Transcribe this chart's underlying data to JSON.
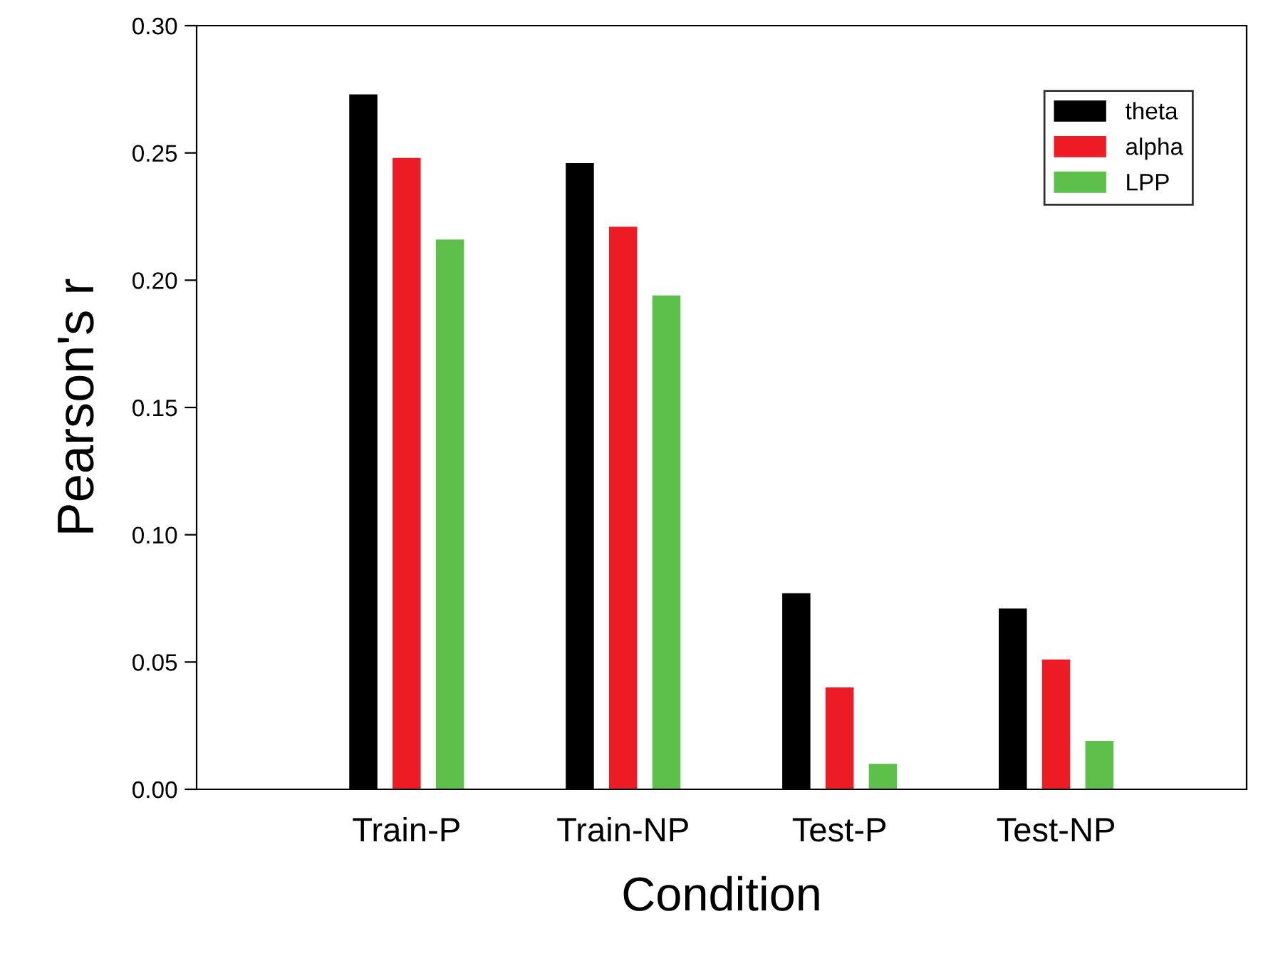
{
  "chart_data": {
    "type": "bar",
    "xlabel": "Condition",
    "ylabel": "Pearson's r",
    "categories": [
      "Train-P",
      "Train-NP",
      "Test-P",
      "Test-NP"
    ],
    "series": [
      {
        "name": "theta",
        "color": "#000000",
        "values": [
          0.273,
          0.246,
          0.077,
          0.071
        ]
      },
      {
        "name": "alpha",
        "color": "#ed1c24",
        "values": [
          0.248,
          0.221,
          0.04,
          0.051
        ]
      },
      {
        "name": "LPP",
        "color": "#5dc04a",
        "values": [
          0.216,
          0.194,
          0.01,
          0.019
        ]
      }
    ],
    "ylim": [
      0,
      0.3
    ],
    "yticks": [
      {
        "value": 0,
        "label": "0.00"
      },
      {
        "value": 0.05,
        "label": "0.05"
      },
      {
        "value": 0.1,
        "label": "0.10"
      },
      {
        "value": 0.15,
        "label": "0.15"
      },
      {
        "value": 0.2,
        "label": "0.20"
      },
      {
        "value": 0.25,
        "label": "0.25"
      },
      {
        "value": 0.3,
        "label": "0.30"
      }
    ],
    "grid": false,
    "legend": "top right"
  }
}
